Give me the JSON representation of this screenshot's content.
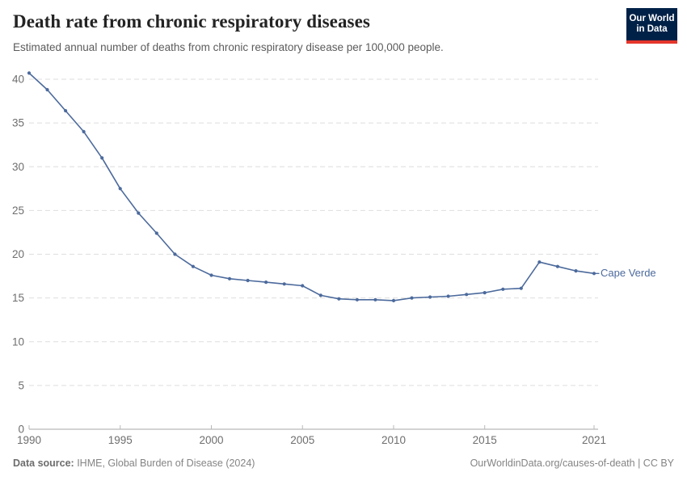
{
  "header": {
    "title": "Death rate from chronic respiratory diseases",
    "subtitle": "Estimated annual number of deaths from chronic respiratory disease per 100,000 people."
  },
  "logo": {
    "line1": "Our World",
    "line2": "in Data",
    "bg_color": "#002147",
    "bar_color": "#e5352b"
  },
  "chart_data": {
    "type": "line",
    "title": "Death rate from chronic respiratory diseases",
    "x": [
      1990,
      1991,
      1992,
      1993,
      1994,
      1995,
      1996,
      1997,
      1998,
      1999,
      2000,
      2001,
      2002,
      2003,
      2004,
      2005,
      2006,
      2007,
      2008,
      2009,
      2010,
      2011,
      2012,
      2013,
      2014,
      2015,
      2016,
      2017,
      2018,
      2019,
      2020,
      2021
    ],
    "series": [
      {
        "name": "Cape Verde",
        "color": "#4c6a9c",
        "values": [
          40.7,
          38.8,
          36.4,
          34.0,
          31.0,
          27.5,
          24.7,
          22.4,
          20.0,
          18.6,
          17.6,
          17.2,
          17.0,
          16.8,
          16.6,
          16.4,
          15.3,
          14.9,
          14.8,
          14.8,
          14.7,
          15.0,
          15.1,
          15.2,
          15.4,
          15.6,
          16.0,
          16.1,
          19.1,
          18.6,
          18.1,
          17.8
        ]
      }
    ],
    "xlabel": "",
    "ylabel": "",
    "xlim": [
      1990,
      2021
    ],
    "ylim": [
      0,
      40
    ],
    "xticks": [
      1990,
      1995,
      2000,
      2005,
      2010,
      2015,
      2021
    ],
    "yticks": [
      0,
      5,
      10,
      15,
      20,
      25,
      30,
      35,
      40
    ],
    "grid": "horizontal-dashed",
    "legend_position": "end-of-line-label"
  },
  "footer": {
    "datasource_label": "Data source:",
    "datasource_value": " IHME, Global Burden of Disease (2024)",
    "credit": "OurWorldinData.org/causes-of-death | CC BY"
  },
  "colors": {
    "line": "#4c6a9c",
    "grid": "#dedede",
    "axis": "#a7a7a7",
    "tick": "#b8b8b8",
    "tick_label": "#6e6e6e",
    "title": "#232323",
    "subtitle": "#5b5b5b",
    "footer": "#848484"
  }
}
